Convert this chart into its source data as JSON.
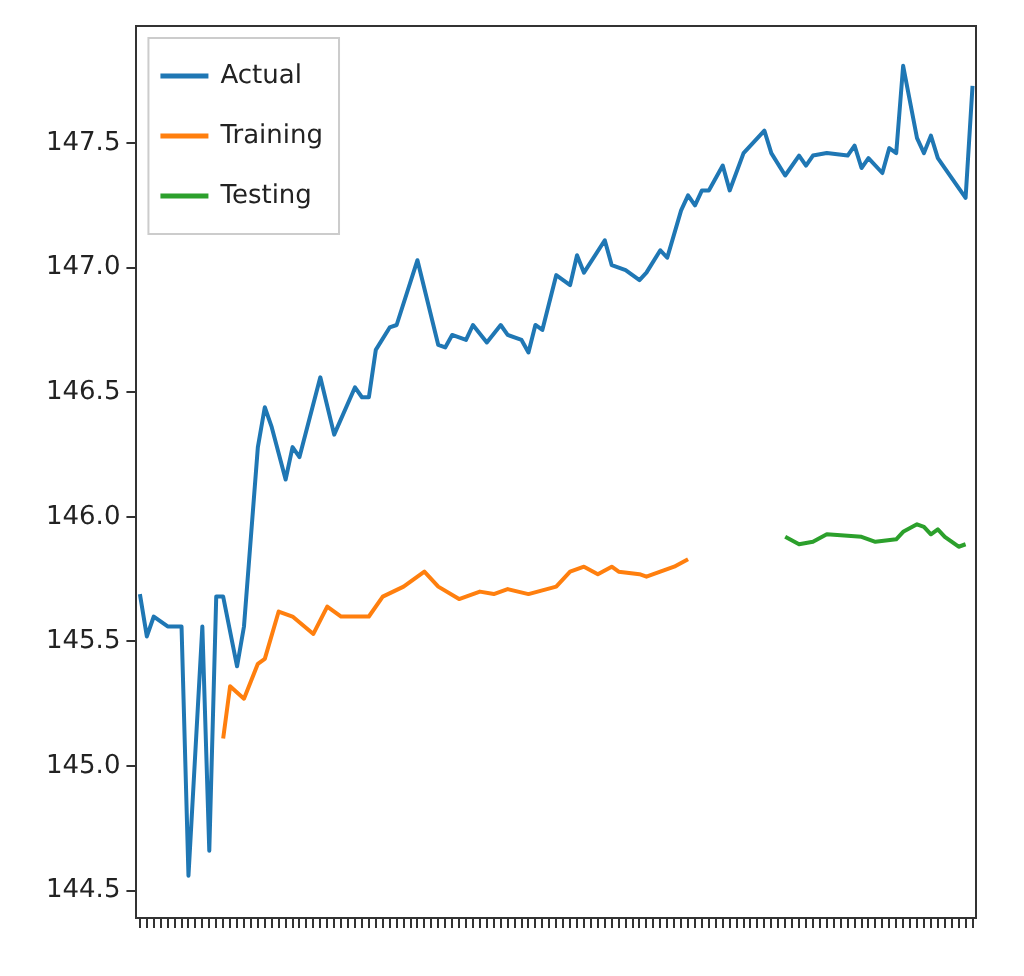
{
  "chart_data": {
    "type": "line",
    "categories": [
      null,
      null,
      null,
      null,
      null,
      null,
      null,
      null,
      null,
      null,
      null,
      null,
      null,
      null,
      null,
      null,
      null,
      null,
      null,
      null,
      null,
      null,
      null,
      null,
      null,
      null,
      null,
      null,
      null,
      null,
      null,
      null,
      null,
      null,
      null,
      null,
      null,
      null,
      null,
      null,
      null,
      null,
      null,
      null,
      null,
      null,
      null,
      null,
      null,
      null,
      null,
      null,
      null,
      null,
      null,
      null,
      null,
      null,
      null,
      null,
      null,
      null,
      null,
      null,
      null,
      null,
      null,
      null,
      null,
      null,
      null,
      null,
      null,
      null,
      null,
      null,
      null,
      null,
      null,
      null,
      null,
      null,
      null,
      null,
      null,
      null,
      null,
      null,
      null,
      null,
      null,
      null,
      null,
      null,
      null,
      null,
      null,
      null,
      null,
      null,
      null,
      null,
      null,
      null,
      null,
      null,
      null,
      null,
      null,
      null,
      null,
      null,
      null,
      null,
      null,
      null,
      null,
      null,
      null,
      null,
      null
    ],
    "ylim": [
      144.39,
      147.97
    ],
    "yticks": [
      144.5,
      {
        "value": 145,
        "label": "145.0"
      },
      145.5,
      {
        "value": 146,
        "label": "146.0"
      },
      146.5,
      {
        "value": 147,
        "label": "147.0"
      },
      147.5
    ],
    "tick_labels": "y",
    "legend": "top left",
    "grid": false,
    "series": [
      {
        "name": "Actual",
        "color": "#1f77b4",
        "values": [
          145.69,
          145.52,
          145.6,
          null,
          145.56,
          null,
          145.56,
          144.56,
          null,
          145.56,
          144.66,
          145.68,
          145.68,
          null,
          145.4,
          145.56,
          null,
          146.28,
          146.44,
          146.36,
          null,
          146.15,
          146.28,
          146.24,
          null,
          null,
          146.56,
          null,
          146.33,
          null,
          null,
          146.52,
          146.48,
          146.48,
          146.67,
          null,
          146.76,
          146.77,
          null,
          null,
          147.03,
          null,
          null,
          146.69,
          146.68,
          146.73,
          null,
          146.71,
          146.77,
          null,
          146.7,
          null,
          146.77,
          146.73,
          null,
          146.71,
          146.66,
          146.77,
          146.75,
          null,
          146.97,
          null,
          146.93,
          147.05,
          146.98,
          null,
          null,
          147.11,
          147.01,
          null,
          146.99,
          null,
          146.95,
          146.98,
          null,
          147.07,
          147.04,
          null,
          147.23,
          147.29,
          147.25,
          147.31,
          147.31,
          null,
          147.41,
          147.31,
          null,
          147.46,
          null,
          null,
          147.55,
          147.46,
          null,
          147.37,
          null,
          147.45,
          147.41,
          147.45,
          null,
          147.46,
          null,
          null,
          147.45,
          147.49,
          147.4,
          147.44,
          null,
          147.38,
          147.48,
          147.46,
          147.81,
          null,
          147.52,
          147.46,
          147.53,
          147.44,
          147.4,
          null,
          null,
          147.28,
          147.73
        ]
      },
      {
        "name": "Training",
        "color": "#ff7f0e",
        "values": [
          null,
          null,
          null,
          null,
          null,
          null,
          null,
          null,
          null,
          null,
          null,
          null,
          145.11,
          145.32,
          null,
          145.27,
          145.34,
          145.41,
          145.43,
          null,
          145.62,
          null,
          145.6,
          null,
          null,
          145.53,
          null,
          145.64,
          null,
          145.6,
          null,
          null,
          null,
          145.6,
          null,
          145.68,
          null,
          null,
          145.72,
          null,
          null,
          145.78,
          null,
          145.72,
          null,
          null,
          145.67,
          null,
          null,
          145.7,
          null,
          145.69,
          null,
          145.71,
          null,
          null,
          145.69,
          null,
          null,
          null,
          145.72,
          null,
          145.78,
          null,
          145.8,
          null,
          145.77,
          null,
          145.8,
          145.78,
          null,
          null,
          145.77,
          145.76,
          null,
          145.78,
          null,
          145.8,
          null,
          145.83,
          null,
          null,
          null,
          null,
          null,
          null,
          null,
          null,
          null,
          null,
          null,
          null,
          null,
          null,
          null,
          null,
          null,
          null,
          null,
          null,
          null,
          null,
          null,
          null,
          null,
          null,
          null,
          null,
          null,
          null,
          null,
          null,
          null,
          null,
          null,
          null,
          null,
          null,
          null,
          null,
          null
        ]
      },
      {
        "name": "Testing",
        "color": "#2ca02c",
        "values": [
          null,
          null,
          null,
          null,
          null,
          null,
          null,
          null,
          null,
          null,
          null,
          null,
          null,
          null,
          null,
          null,
          null,
          null,
          null,
          null,
          null,
          null,
          null,
          null,
          null,
          null,
          null,
          null,
          null,
          null,
          null,
          null,
          null,
          null,
          null,
          null,
          null,
          null,
          null,
          null,
          null,
          null,
          null,
          null,
          null,
          null,
          null,
          null,
          null,
          null,
          null,
          null,
          null,
          null,
          null,
          null,
          null,
          null,
          null,
          null,
          null,
          null,
          null,
          null,
          null,
          null,
          null,
          null,
          null,
          null,
          null,
          null,
          null,
          null,
          null,
          null,
          null,
          null,
          null,
          null,
          null,
          null,
          null,
          null,
          null,
          null,
          null,
          null,
          null,
          null,
          null,
          null,
          null,
          145.92,
          null,
          145.89,
          null,
          145.9,
          null,
          145.93,
          null,
          null,
          null,
          null,
          145.92,
          null,
          145.9,
          null,
          null,
          145.91,
          145.94,
          null,
          145.97,
          145.96,
          145.93,
          145.95,
          145.92,
          null,
          145.88,
          145.89,
          null
        ]
      }
    ]
  }
}
